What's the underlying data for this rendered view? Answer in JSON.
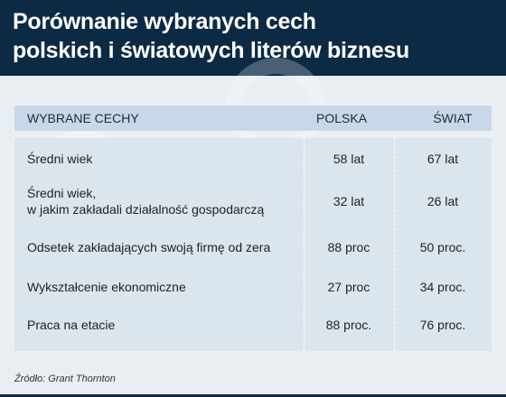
{
  "title_line1": "Porównanie wybranych cech",
  "title_line2": "polskich i światowych literów biznesu",
  "table": {
    "headers": {
      "features": "WYBRANE CECHY",
      "poland": "POLSKA",
      "world": "ŚWIAT"
    },
    "rows": [
      {
        "label": "Średni wiek",
        "poland": "58 lat",
        "world": "67 lat"
      },
      {
        "label_line1": "Średni wiek,",
        "label_line2": "w jakim zakładali działalność gospodarczą",
        "poland": "32 lat",
        "world": "26 lat"
      },
      {
        "label": "Odsetek zakładających swoją firmę od zera",
        "poland": "88 proc",
        "world": "50 proc."
      },
      {
        "label": "Wykształcenie ekonomiczne",
        "poland": "27 proc",
        "world": "34 proc."
      },
      {
        "label": "Praca na etacie",
        "poland": "88 proc.",
        "world": "76 proc."
      }
    ]
  },
  "source": "Źródło: Grant Thornton"
}
